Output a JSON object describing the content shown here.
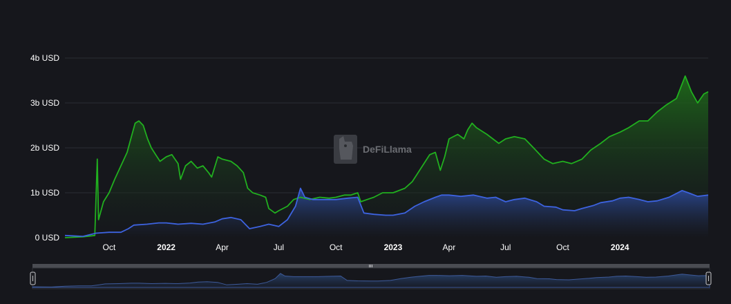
{
  "watermark": {
    "text": "DeFiLlama",
    "icon": "llama-logo-icon"
  },
  "colors": {
    "background": "#16171c",
    "grid": "#2a2c33",
    "green_line": "#21b01f",
    "green_fill_top": "#1f6f1a",
    "blue_line": "#3d63e0",
    "blue_fill_top": "#2c4a9a",
    "slider_handle": "#2a2c33"
  },
  "chart_data": {
    "type": "area",
    "title": "",
    "xlabel": "",
    "ylabel": "",
    "ylim": [
      0,
      4
    ],
    "y_unit": "b USD",
    "y_ticks": [
      {
        "value": 0,
        "label": "0 USD"
      },
      {
        "value": 1,
        "label": "1b USD"
      },
      {
        "value": 2,
        "label": "2b USD"
      },
      {
        "value": 3,
        "label": "3b USD"
      },
      {
        "value": 4,
        "label": "4b USD"
      }
    ],
    "x_ticks": [
      {
        "date": "2021-10-01",
        "label": "Oct",
        "bold": false
      },
      {
        "date": "2022-01-01",
        "label": "2022",
        "bold": true
      },
      {
        "date": "2022-04-01",
        "label": "Apr",
        "bold": false
      },
      {
        "date": "2022-07-01",
        "label": "Jul",
        "bold": false
      },
      {
        "date": "2022-10-01",
        "label": "Oct",
        "bold": false
      },
      {
        "date": "2023-01-01",
        "label": "2023",
        "bold": true
      },
      {
        "date": "2023-04-01",
        "label": "Apr",
        "bold": false
      },
      {
        "date": "2023-07-01",
        "label": "Jul",
        "bold": false
      },
      {
        "date": "2023-10-01",
        "label": "Oct",
        "bold": false
      },
      {
        "date": "2024-01-01",
        "label": "2024",
        "bold": true
      }
    ],
    "x_range": [
      "2021-07-22",
      "2024-05-22"
    ],
    "grid": true,
    "legend": "none",
    "series": [
      {
        "color": "green",
        "points": [
          [
            "2021-07-22",
            0.0
          ],
          [
            "2021-08-20",
            0.02
          ],
          [
            "2021-09-08",
            0.05
          ],
          [
            "2021-09-12",
            1.75
          ],
          [
            "2021-09-14",
            0.4
          ],
          [
            "2021-09-22",
            0.8
          ],
          [
            "2021-10-01",
            1.0
          ],
          [
            "2021-10-10",
            1.3
          ],
          [
            "2021-10-20",
            1.6
          ],
          [
            "2021-10-30",
            1.9
          ],
          [
            "2021-11-05",
            2.2
          ],
          [
            "2021-11-12",
            2.55
          ],
          [
            "2021-11-18",
            2.6
          ],
          [
            "2021-11-25",
            2.5
          ],
          [
            "2021-12-02",
            2.2
          ],
          [
            "2021-12-08",
            2.0
          ],
          [
            "2021-12-15",
            1.85
          ],
          [
            "2021-12-22",
            1.7
          ],
          [
            "2022-01-01",
            1.8
          ],
          [
            "2022-01-10",
            1.85
          ],
          [
            "2022-01-20",
            1.65
          ],
          [
            "2022-01-24",
            1.3
          ],
          [
            "2022-02-01",
            1.6
          ],
          [
            "2022-02-10",
            1.7
          ],
          [
            "2022-02-20",
            1.55
          ],
          [
            "2022-03-01",
            1.6
          ],
          [
            "2022-03-10",
            1.45
          ],
          [
            "2022-03-15",
            1.35
          ],
          [
            "2022-03-25",
            1.8
          ],
          [
            "2022-04-01",
            1.75
          ],
          [
            "2022-04-15",
            1.7
          ],
          [
            "2022-04-25",
            1.6
          ],
          [
            "2022-05-05",
            1.45
          ],
          [
            "2022-05-12",
            1.1
          ],
          [
            "2022-05-20",
            1.0
          ],
          [
            "2022-06-01",
            0.95
          ],
          [
            "2022-06-10",
            0.9
          ],
          [
            "2022-06-15",
            0.65
          ],
          [
            "2022-06-25",
            0.55
          ],
          [
            "2022-07-01",
            0.6
          ],
          [
            "2022-07-15",
            0.7
          ],
          [
            "2022-07-25",
            0.85
          ],
          [
            "2022-08-05",
            0.9
          ],
          [
            "2022-08-20",
            0.85
          ],
          [
            "2022-09-05",
            0.9
          ],
          [
            "2022-09-20",
            0.88
          ],
          [
            "2022-10-01",
            0.9
          ],
          [
            "2022-10-15",
            0.95
          ],
          [
            "2022-10-25",
            0.95
          ],
          [
            "2022-11-05",
            1.0
          ],
          [
            "2022-11-10",
            0.8
          ],
          [
            "2022-11-20",
            0.85
          ],
          [
            "2022-12-01",
            0.9
          ],
          [
            "2022-12-15",
            1.0
          ],
          [
            "2023-01-01",
            1.0
          ],
          [
            "2023-01-20",
            1.1
          ],
          [
            "2023-02-01",
            1.25
          ],
          [
            "2023-02-15",
            1.55
          ],
          [
            "2023-03-01",
            1.85
          ],
          [
            "2023-03-10",
            1.9
          ],
          [
            "2023-03-18",
            1.5
          ],
          [
            "2023-03-25",
            1.8
          ],
          [
            "2023-04-01",
            2.2
          ],
          [
            "2023-04-15",
            2.3
          ],
          [
            "2023-04-25",
            2.2
          ],
          [
            "2023-05-01",
            2.4
          ],
          [
            "2023-05-08",
            2.55
          ],
          [
            "2023-05-15",
            2.45
          ],
          [
            "2023-06-01",
            2.3
          ],
          [
            "2023-06-20",
            2.1
          ],
          [
            "2023-07-01",
            2.2
          ],
          [
            "2023-07-15",
            2.25
          ],
          [
            "2023-08-01",
            2.2
          ],
          [
            "2023-08-15",
            2.0
          ],
          [
            "2023-09-01",
            1.75
          ],
          [
            "2023-09-15",
            1.65
          ],
          [
            "2023-10-01",
            1.7
          ],
          [
            "2023-10-15",
            1.65
          ],
          [
            "2023-11-01",
            1.75
          ],
          [
            "2023-11-15",
            1.95
          ],
          [
            "2023-12-01",
            2.1
          ],
          [
            "2023-12-15",
            2.25
          ],
          [
            "2024-01-01",
            2.35
          ],
          [
            "2024-01-15",
            2.45
          ],
          [
            "2024-02-01",
            2.6
          ],
          [
            "2024-02-15",
            2.6
          ],
          [
            "2024-03-01",
            2.8
          ],
          [
            "2024-03-15",
            2.95
          ],
          [
            "2024-04-01",
            3.1
          ],
          [
            "2024-04-15",
            3.6
          ],
          [
            "2024-04-25",
            3.25
          ],
          [
            "2024-05-05",
            3.0
          ],
          [
            "2024-05-15",
            3.2
          ],
          [
            "2024-05-22",
            3.25
          ]
        ]
      },
      {
        "color": "blue",
        "points": [
          [
            "2021-07-22",
            0.05
          ],
          [
            "2021-08-20",
            0.03
          ],
          [
            "2021-09-10",
            0.1
          ],
          [
            "2021-10-01",
            0.12
          ],
          [
            "2021-10-20",
            0.12
          ],
          [
            "2021-11-01",
            0.2
          ],
          [
            "2021-11-10",
            0.28
          ],
          [
            "2021-12-01",
            0.3
          ],
          [
            "2021-12-20",
            0.33
          ],
          [
            "2022-01-01",
            0.33
          ],
          [
            "2022-01-20",
            0.3
          ],
          [
            "2022-02-10",
            0.32
          ],
          [
            "2022-03-01",
            0.3
          ],
          [
            "2022-03-20",
            0.35
          ],
          [
            "2022-04-01",
            0.42
          ],
          [
            "2022-04-15",
            0.45
          ],
          [
            "2022-05-01",
            0.4
          ],
          [
            "2022-05-15",
            0.2
          ],
          [
            "2022-06-01",
            0.25
          ],
          [
            "2022-06-15",
            0.3
          ],
          [
            "2022-07-01",
            0.25
          ],
          [
            "2022-07-15",
            0.4
          ],
          [
            "2022-07-28",
            0.7
          ],
          [
            "2022-08-05",
            1.1
          ],
          [
            "2022-08-12",
            0.9
          ],
          [
            "2022-08-25",
            0.85
          ],
          [
            "2022-09-10",
            0.85
          ],
          [
            "2022-10-01",
            0.85
          ],
          [
            "2022-10-20",
            0.88
          ],
          [
            "2022-11-05",
            0.9
          ],
          [
            "2022-11-15",
            0.55
          ],
          [
            "2022-12-01",
            0.52
          ],
          [
            "2022-12-20",
            0.5
          ],
          [
            "2023-01-01",
            0.5
          ],
          [
            "2023-01-20",
            0.55
          ],
          [
            "2023-02-05",
            0.7
          ],
          [
            "2023-02-20",
            0.8
          ],
          [
            "2023-03-10",
            0.9
          ],
          [
            "2023-03-20",
            0.95
          ],
          [
            "2023-04-01",
            0.95
          ],
          [
            "2023-04-20",
            0.92
          ],
          [
            "2023-05-10",
            0.95
          ],
          [
            "2023-06-01",
            0.88
          ],
          [
            "2023-06-15",
            0.9
          ],
          [
            "2023-07-01",
            0.8
          ],
          [
            "2023-07-15",
            0.85
          ],
          [
            "2023-08-01",
            0.88
          ],
          [
            "2023-08-20",
            0.8
          ],
          [
            "2023-09-01",
            0.7
          ],
          [
            "2023-09-20",
            0.68
          ],
          [
            "2023-10-01",
            0.62
          ],
          [
            "2023-10-20",
            0.6
          ],
          [
            "2023-11-01",
            0.65
          ],
          [
            "2023-11-20",
            0.72
          ],
          [
            "2023-12-01",
            0.78
          ],
          [
            "2023-12-20",
            0.82
          ],
          [
            "2024-01-01",
            0.88
          ],
          [
            "2024-01-15",
            0.9
          ],
          [
            "2024-02-01",
            0.85
          ],
          [
            "2024-02-15",
            0.8
          ],
          [
            "2024-03-01",
            0.82
          ],
          [
            "2024-03-20",
            0.9
          ],
          [
            "2024-04-10",
            1.05
          ],
          [
            "2024-04-20",
            1.0
          ],
          [
            "2024-05-05",
            0.92
          ],
          [
            "2024-05-22",
            0.95
          ]
        ]
      }
    ]
  }
}
